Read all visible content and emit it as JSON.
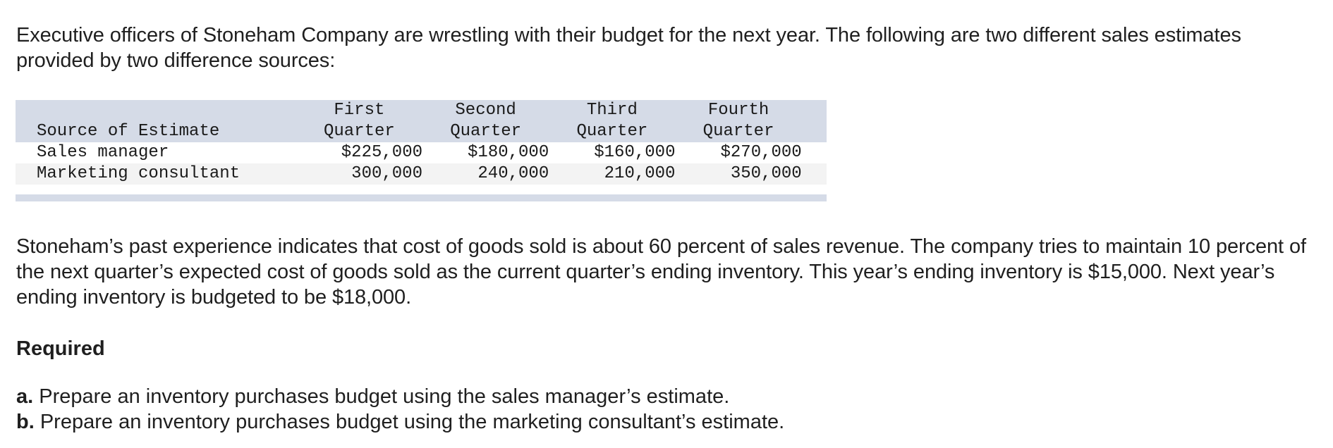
{
  "intro": "Executive officers of Stoneham Company are wrestling with their budget for the next year. The following are two different sales estimates provided by two difference sources:",
  "table": {
    "header_top": [
      "First",
      "Second",
      "Third",
      "Fourth"
    ],
    "header_bottom_label": "Source of Estimate",
    "header_bottom": [
      "Quarter",
      "Quarter",
      "Quarter",
      "Quarter"
    ],
    "rows": [
      {
        "label": "Sales manager",
        "values": [
          "$225,000",
          "$180,000",
          "$160,000",
          "$270,000"
        ]
      },
      {
        "label": "Marketing consultant",
        "values": [
          "300,000",
          "240,000",
          "210,000",
          "350,000"
        ]
      }
    ]
  },
  "context": "Stoneham’s past experience indicates that cost of goods sold is about 60 percent of sales revenue. The company tries to maintain 10 percent of the next quarter’s expected cost of goods sold as the current quarter’s ending inventory. This year’s ending inventory is $15,000. Next year’s ending inventory is budgeted to be $18,000.",
  "required": {
    "heading": "Required",
    "items": [
      {
        "letter": "a.",
        "text": " Prepare an inventory purchases budget using the sales manager’s estimate."
      },
      {
        "letter": "b.",
        "text": " Prepare an inventory purchases budget using the marketing consultant’s estimate."
      }
    ]
  }
}
